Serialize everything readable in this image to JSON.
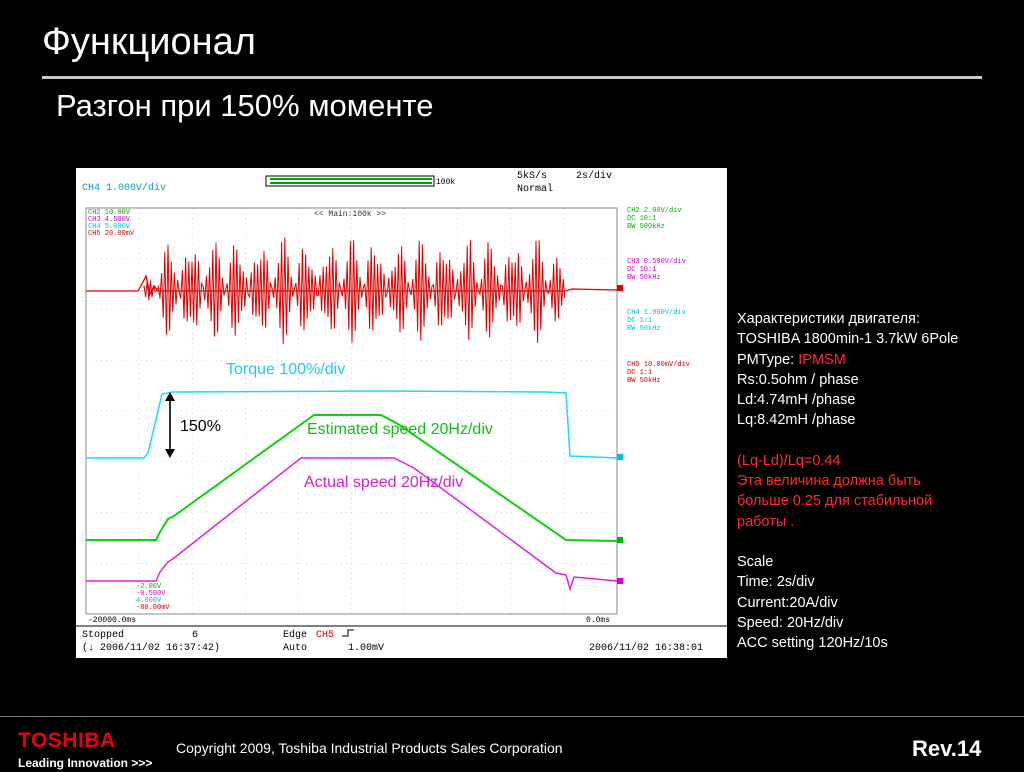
{
  "slide": {
    "title": "Функционал",
    "subtitle": "Разгон при 150% моменте"
  },
  "scope": {
    "top_left": "CH4   1.000V/div",
    "trigger_pos": "100k",
    "sample_rate": "5kS/s",
    "mode": "Normal",
    "timebase": "2s/div",
    "main_label": "<< Main:100k >>",
    "ch_list_top": [
      {
        "ch": "CH2",
        "val": "10.00V",
        "color": "#00b000"
      },
      {
        "ch": "CH3",
        "val": "4.500V",
        "color": "#d000d0"
      },
      {
        "ch": "CH4",
        "val": "5.000V",
        "color": "#00c0e0"
      },
      {
        "ch": "CH5",
        "val": "20.00mV",
        "color": "#e00000"
      }
    ],
    "ch_list_bottom": [
      {
        "val": "-2.00V",
        "color": "#00b000"
      },
      {
        "val": "-0.500V",
        "color": "#d000d0"
      },
      {
        "val": "4.000V",
        "color": "#00c0e0"
      },
      {
        "val": "-80.00mV",
        "color": "#e00000"
      }
    ],
    "right_channels": [
      {
        "lines": [
          "CH2  2.00V/div",
          "  DC  10:1",
          "  BW 500kHz"
        ],
        "color": "#00b000"
      },
      {
        "lines": [
          "CH3  0.500V/div",
          "  DC  10:1",
          "  BW 50kHz"
        ],
        "color": "#d000d0"
      },
      {
        "lines": [
          "CH4  1.000V/div",
          "  DC  1:1",
          "  BW 50kHz"
        ],
        "color": "#00c0e0"
      },
      {
        "lines": [
          "CH5  10.00mV/div",
          "  DC  1:1",
          "  BW 50kHz"
        ],
        "color": "#e00000"
      }
    ],
    "time_left": "-20000.0ms",
    "time_right": "0.0ms",
    "status": "Stopped",
    "count": "6",
    "trigger_type": "Edge",
    "trigger_ch": "CH5",
    "trigger_mode": "Auto",
    "trigger_level": "1.00mV",
    "date_left": "(↓ 2006/11/02 16:37:42)",
    "date_right": "2006/11/02 16:38:01",
    "colors": {
      "torque": "#20d8ff",
      "est_speed": "#10d010",
      "act_speed": "#e020e0",
      "current": "#e00000"
    }
  },
  "annotations": {
    "torque": "Torque 100%/div",
    "torque_pct": "150%",
    "est_speed": "Estimated speed  20Hz/div",
    "act_speed": "Actual speed  20Hz/div"
  },
  "specs": {
    "l1": "Характеристики двигателя:",
    "l2": "TOSHIBA 1800min-1 3.7kW 6Pole",
    "l3_prefix": "PMType: ",
    "l3_value": "IPMSM",
    "l4": "Rs:0.5ohm / phase",
    "l5": "Ld:4.74mH /phase",
    "l6": "Lq:8.42mH /phase",
    "l7": "(Lq-Ld)/Lq=0.44",
    "l8": "Эта величина должна быть",
    "l9": "больше  0.25  для стабильной",
    "l10": "работы .",
    "l11": "Scale",
    "l12": "Time: 2s/div",
    "l13": "Current:20A/div",
    "l14": "Speed: 20Hz/div",
    "l15": "ACC setting  120Hz/10s"
  },
  "footer": {
    "brand": "TOSHIBA",
    "tagline": "Leading Innovation >>>",
    "copyright": "Copyright 2009, Toshiba Industrial Products Sales Corporation",
    "rev": "Rev.14"
  }
}
